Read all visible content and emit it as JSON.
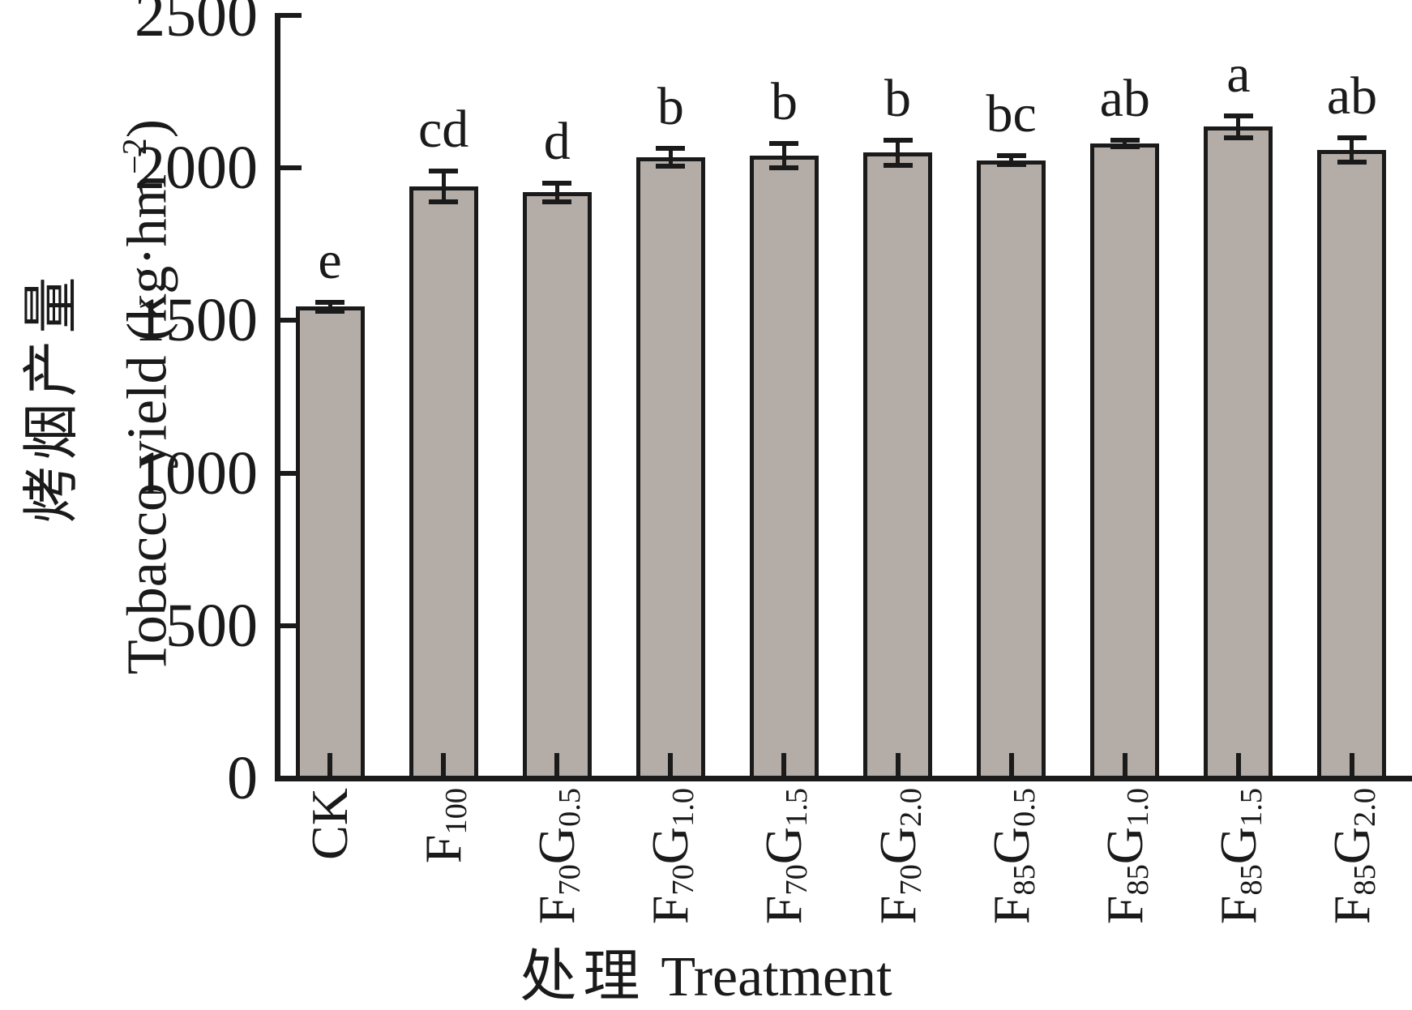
{
  "figure": {
    "background": "#ffffff",
    "axis_color": "#1a1a1a",
    "bar_fill": "#b4aca7",
    "bar_border": "#1a1a1a"
  },
  "y_axis": {
    "title_cn": "烤烟产量",
    "title_en_pre": "Tobacco yield (kg·hm",
    "title_en_sup": "−2",
    "title_en_post": ")",
    "tick_labels": [
      "0",
      "500",
      "1000",
      "1500",
      "2000",
      "2500"
    ],
    "range": [
      0,
      2500
    ]
  },
  "x_axis": {
    "title_cn": "处理",
    "title_en": "Treatment"
  },
  "chart_data": {
    "type": "bar",
    "title": "",
    "xlabel": "处理 Treatment",
    "ylabel": "烤烟产量 Tobacco yield (kg·hm−2)",
    "ylim": [
      0,
      2500
    ],
    "yticks": [
      0,
      500,
      1000,
      1500,
      2000,
      2500
    ],
    "grid": false,
    "legend": null,
    "categories": [
      "CK",
      "F100",
      "F70G0.5",
      "F70G1.0",
      "F70G1.5",
      "F70G2.0",
      "F85G0.5",
      "F85G1.0",
      "F85G1.5",
      "F85G2.0"
    ],
    "category_parts": [
      [
        [
          "CK",
          false
        ]
      ],
      [
        [
          "F",
          false
        ],
        [
          "100",
          true
        ]
      ],
      [
        [
          "F",
          false
        ],
        [
          "70",
          true
        ],
        [
          "G",
          false
        ],
        [
          "0.5",
          true
        ]
      ],
      [
        [
          "F",
          false
        ],
        [
          "70",
          true
        ],
        [
          "G",
          false
        ],
        [
          "1.0",
          true
        ]
      ],
      [
        [
          "F",
          false
        ],
        [
          "70",
          true
        ],
        [
          "G",
          false
        ],
        [
          "1.5",
          true
        ]
      ],
      [
        [
          "F",
          false
        ],
        [
          "70",
          true
        ],
        [
          "G",
          false
        ],
        [
          "2.0",
          true
        ]
      ],
      [
        [
          "F",
          false
        ],
        [
          "85",
          true
        ],
        [
          "G",
          false
        ],
        [
          "0.5",
          true
        ]
      ],
      [
        [
          "F",
          false
        ],
        [
          "85",
          true
        ],
        [
          "G",
          false
        ],
        [
          "1.0",
          true
        ]
      ],
      [
        [
          "F",
          false
        ],
        [
          "85",
          true
        ],
        [
          "G",
          false
        ],
        [
          "1.5",
          true
        ]
      ],
      [
        [
          "F",
          false
        ],
        [
          "85",
          true
        ],
        [
          "G",
          false
        ],
        [
          "2.0",
          true
        ]
      ]
    ],
    "values": [
      1545,
      1940,
      1920,
      2035,
      2040,
      2050,
      2025,
      2080,
      2135,
      2060
    ],
    "errors": [
      15,
      50,
      30,
      30,
      40,
      42,
      15,
      10,
      36,
      40
    ],
    "sig_letters": [
      "e",
      "cd",
      "d",
      "b",
      "b",
      "b",
      "bc",
      "ab",
      "a",
      "ab"
    ]
  }
}
